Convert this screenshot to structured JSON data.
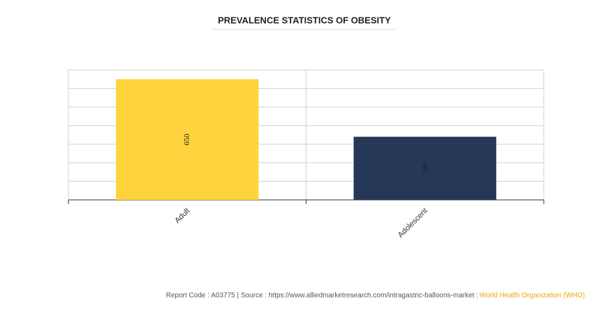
{
  "chart_data": {
    "type": "bar",
    "title": "PREVALENCE STATISTICS OF OBESITY",
    "categories": [
      "Adult",
      "Adolescent"
    ],
    "values": [
      650,
      340
    ],
    "colors": [
      "#ffd33d",
      "#253858"
    ],
    "ylim": [
      0,
      700
    ],
    "yticks": [
      0,
      100,
      200,
      300,
      400,
      500,
      600,
      700
    ],
    "grid": true
  },
  "footer": {
    "source": "Report Code : A03775  |  Source : https://www.alliedmarketresearch.com/intragastric-balloons-market :",
    "organization": "World Health Organization (WHO)"
  }
}
